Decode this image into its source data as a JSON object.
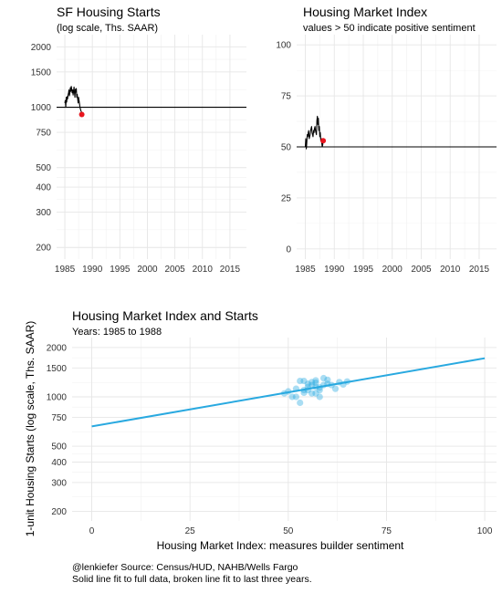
{
  "chart_data": [
    {
      "id": "starts",
      "type": "line",
      "title": "SF Housing Starts",
      "subtitle": "(log scale, Ths. SAAR)",
      "y_scale": "log",
      "xlim": [
        1983.5,
        2018
      ],
      "ylim": [
        175,
        2300
      ],
      "x_ticks": [
        1985,
        1990,
        1995,
        2000,
        2005,
        2010,
        2015
      ],
      "y_ticks": [
        200,
        300,
        400,
        500,
        750,
        1000,
        1500,
        2000
      ],
      "reference_line": 1000,
      "grid": true,
      "x": [
        1985.0,
        1985.08,
        1985.17,
        1985.25,
        1985.33,
        1985.42,
        1985.5,
        1985.58,
        1985.67,
        1985.75,
        1985.83,
        1985.92,
        1986.0,
        1986.08,
        1986.17,
        1986.25,
        1986.33,
        1986.42,
        1986.5,
        1986.58,
        1986.67,
        1986.75,
        1986.83,
        1986.92,
        1987.0,
        1987.08,
        1987.17,
        1987.25,
        1987.33,
        1987.42,
        1987.5,
        1987.58,
        1987.67,
        1987.75,
        1987.83,
        1987.92,
        1988.0,
        1988.08
      ],
      "values": [
        1050,
        1080,
        1000,
        1120,
        1060,
        1130,
        1100,
        1150,
        1180,
        1220,
        1140,
        1180,
        1250,
        1200,
        1270,
        1230,
        1180,
        1220,
        1150,
        1200,
        1260,
        1180,
        1120,
        1230,
        1190,
        1240,
        1120,
        1160,
        1100,
        1050,
        1120,
        1080,
        1040,
        1000,
        980,
        960,
        950,
        920
      ],
      "highlight": {
        "x": 1988.08,
        "y": 920,
        "color": "#e8161e"
      },
      "line_color": "#000000"
    },
    {
      "id": "hmi",
      "type": "line",
      "title": "Housing Market Index",
      "subtitle": "values > 50 indicate positive sentiment",
      "xlim": [
        1983.5,
        2018
      ],
      "ylim": [
        -5,
        105
      ],
      "x_ticks": [
        1985,
        1990,
        1995,
        2000,
        2005,
        2010,
        2015
      ],
      "y_ticks": [
        0,
        25,
        50,
        75,
        100
      ],
      "reference_line": 50,
      "grid": true,
      "x": [
        1985.0,
        1985.08,
        1985.17,
        1985.25,
        1985.33,
        1985.42,
        1985.5,
        1985.58,
        1985.67,
        1985.75,
        1985.83,
        1985.92,
        1986.0,
        1986.08,
        1986.17,
        1986.25,
        1986.33,
        1986.42,
        1986.5,
        1986.58,
        1986.67,
        1986.75,
        1986.83,
        1986.92,
        1987.0,
        1987.08,
        1987.17,
        1987.25,
        1987.33,
        1987.42,
        1987.5,
        1987.58,
        1987.67,
        1987.75,
        1987.83,
        1987.92,
        1988.0,
        1988.08
      ],
      "values": [
        50,
        54,
        49,
        52,
        56,
        55,
        57,
        58,
        54,
        55,
        56,
        58,
        59,
        60,
        57,
        56,
        55,
        58,
        57,
        59,
        60,
        58,
        57,
        56,
        63,
        65,
        61,
        64,
        58,
        60,
        55,
        57,
        53,
        54,
        52,
        50,
        51,
        53
      ],
      "highlight": {
        "x": 1988.08,
        "y": 53,
        "color": "#e8161e"
      },
      "line_color": "#000000"
    },
    {
      "id": "scatter",
      "type": "scatter",
      "title": "Housing Market Index and Starts",
      "subtitle": "Years: 1985 to 1988",
      "xlabel": "Housing Market Index: measures builder sentiment",
      "ylabel": "1-unit Housing Starts (log scale, Ths. SAAR)",
      "y_scale": "log",
      "xlim": [
        -5,
        103
      ],
      "ylim": [
        175,
        2300
      ],
      "x_ticks": [
        0,
        25,
        50,
        75,
        100
      ],
      "y_ticks": [
        200,
        300,
        400,
        500,
        750,
        1000,
        1500,
        2000
      ],
      "grid": true,
      "points": [
        [
          50,
          1080
        ],
        [
          51,
          1000
        ],
        [
          52,
          1120
        ],
        [
          53,
          1250
        ],
        [
          54,
          1060
        ],
        [
          55,
          1150
        ],
        [
          56,
          1180
        ],
        [
          57,
          1220
        ],
        [
          58,
          1140
        ],
        [
          59,
          1300
        ],
        [
          60,
          1270
        ],
        [
          61,
          1180
        ],
        [
          62,
          1120
        ],
        [
          63,
          1230
        ],
        [
          64,
          1190
        ],
        [
          65,
          1240
        ],
        [
          49,
          1050
        ],
        [
          53,
          920
        ],
        [
          54,
          1100
        ],
        [
          55,
          1200
        ],
        [
          56,
          1230
        ],
        [
          57,
          1050
        ],
        [
          58,
          1100
        ],
        [
          56,
          1050
        ],
        [
          57,
          1260
        ],
        [
          55,
          1100
        ],
        [
          52,
          1000
        ],
        [
          60,
          1200
        ],
        [
          58,
          1000
        ],
        [
          54,
          1250
        ],
        [
          57,
          1150
        ],
        [
          59,
          1180
        ]
      ],
      "point_color": "#29a9e0",
      "fit_line": {
        "x": [
          0,
          100
        ],
        "y": [
          660,
          1720
        ],
        "color": "#29a9e0"
      }
    }
  ],
  "caption": {
    "line1": "@lenkiefer Source: Census/HUD, NAHB/Wells Fargo",
    "line2": "Solid line fit to full data, broken line fit to last three years."
  }
}
